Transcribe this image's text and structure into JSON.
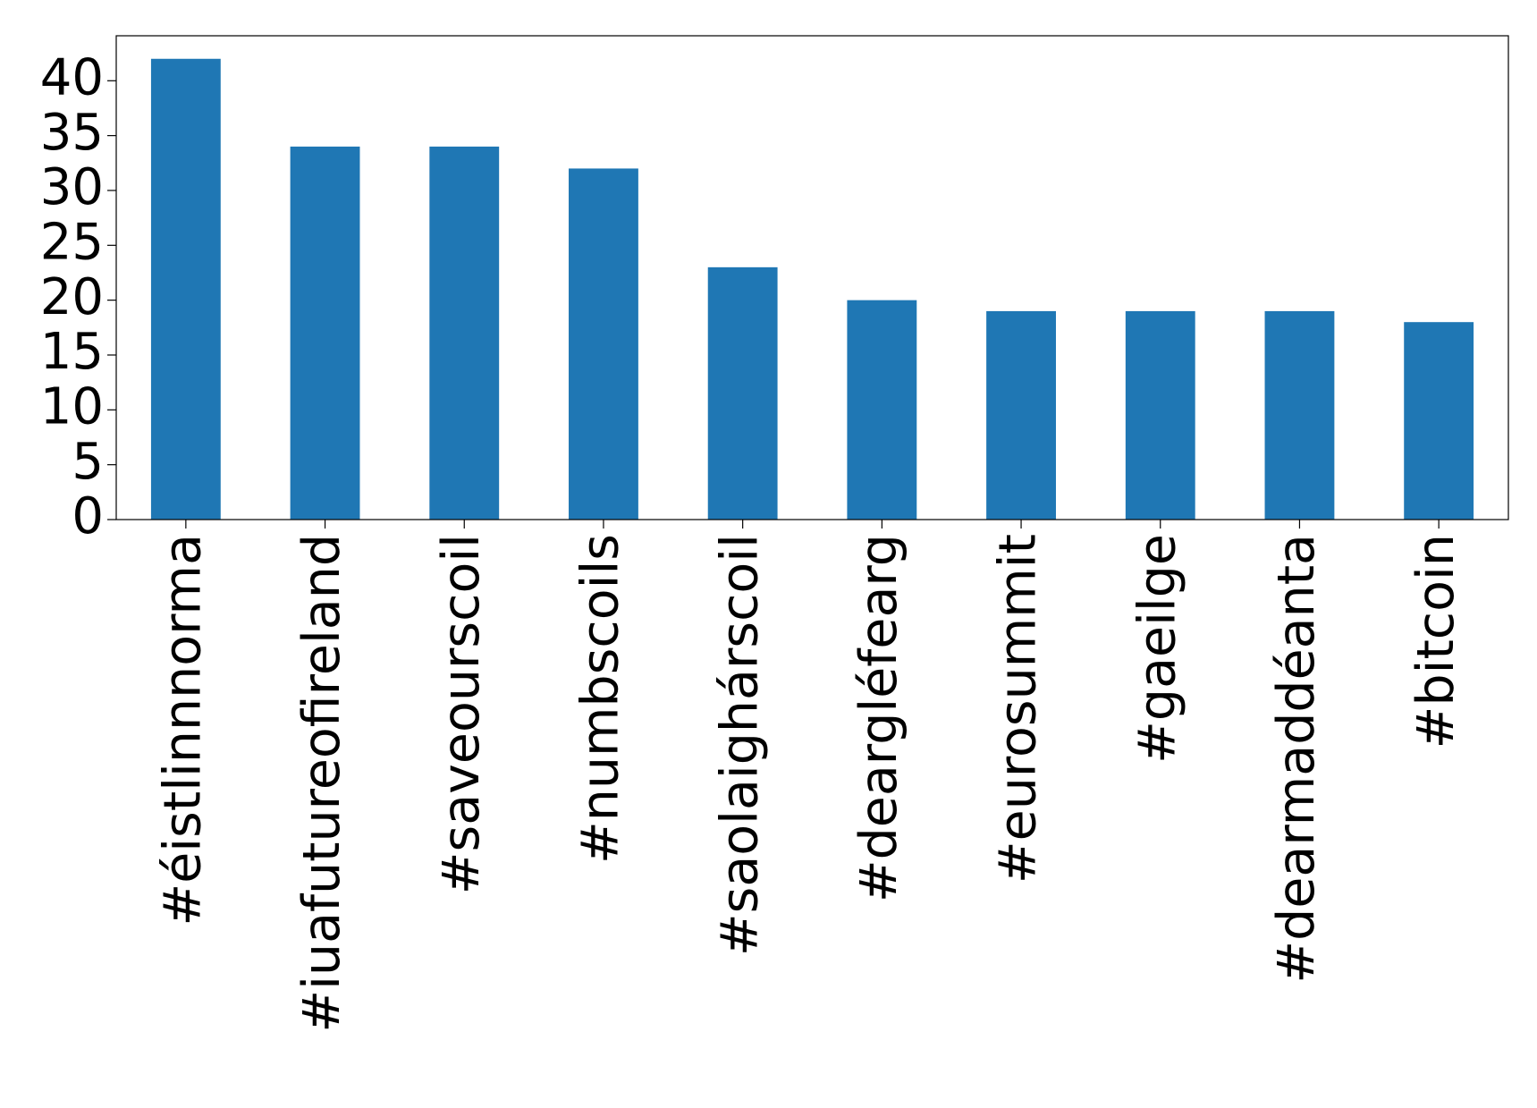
{
  "chart_data": {
    "type": "bar",
    "categories": [
      "#éistlinnnorma",
      "#iuafutureofireland",
      "#saveourscoil",
      "#numbscoils",
      "#saolaighárscoil",
      "#deargléfearg",
      "#eurosummit",
      "#gaeilge",
      "#dearmaddéanta",
      "#bitcoin"
    ],
    "values": [
      42,
      34,
      34,
      32,
      23,
      20,
      19,
      19,
      19,
      18
    ],
    "color": "#1f77b4",
    "ylim": [
      0,
      44.1
    ],
    "yticks": [
      0,
      5,
      10,
      15,
      20,
      25,
      30,
      35,
      40
    ],
    "grid": false
  }
}
